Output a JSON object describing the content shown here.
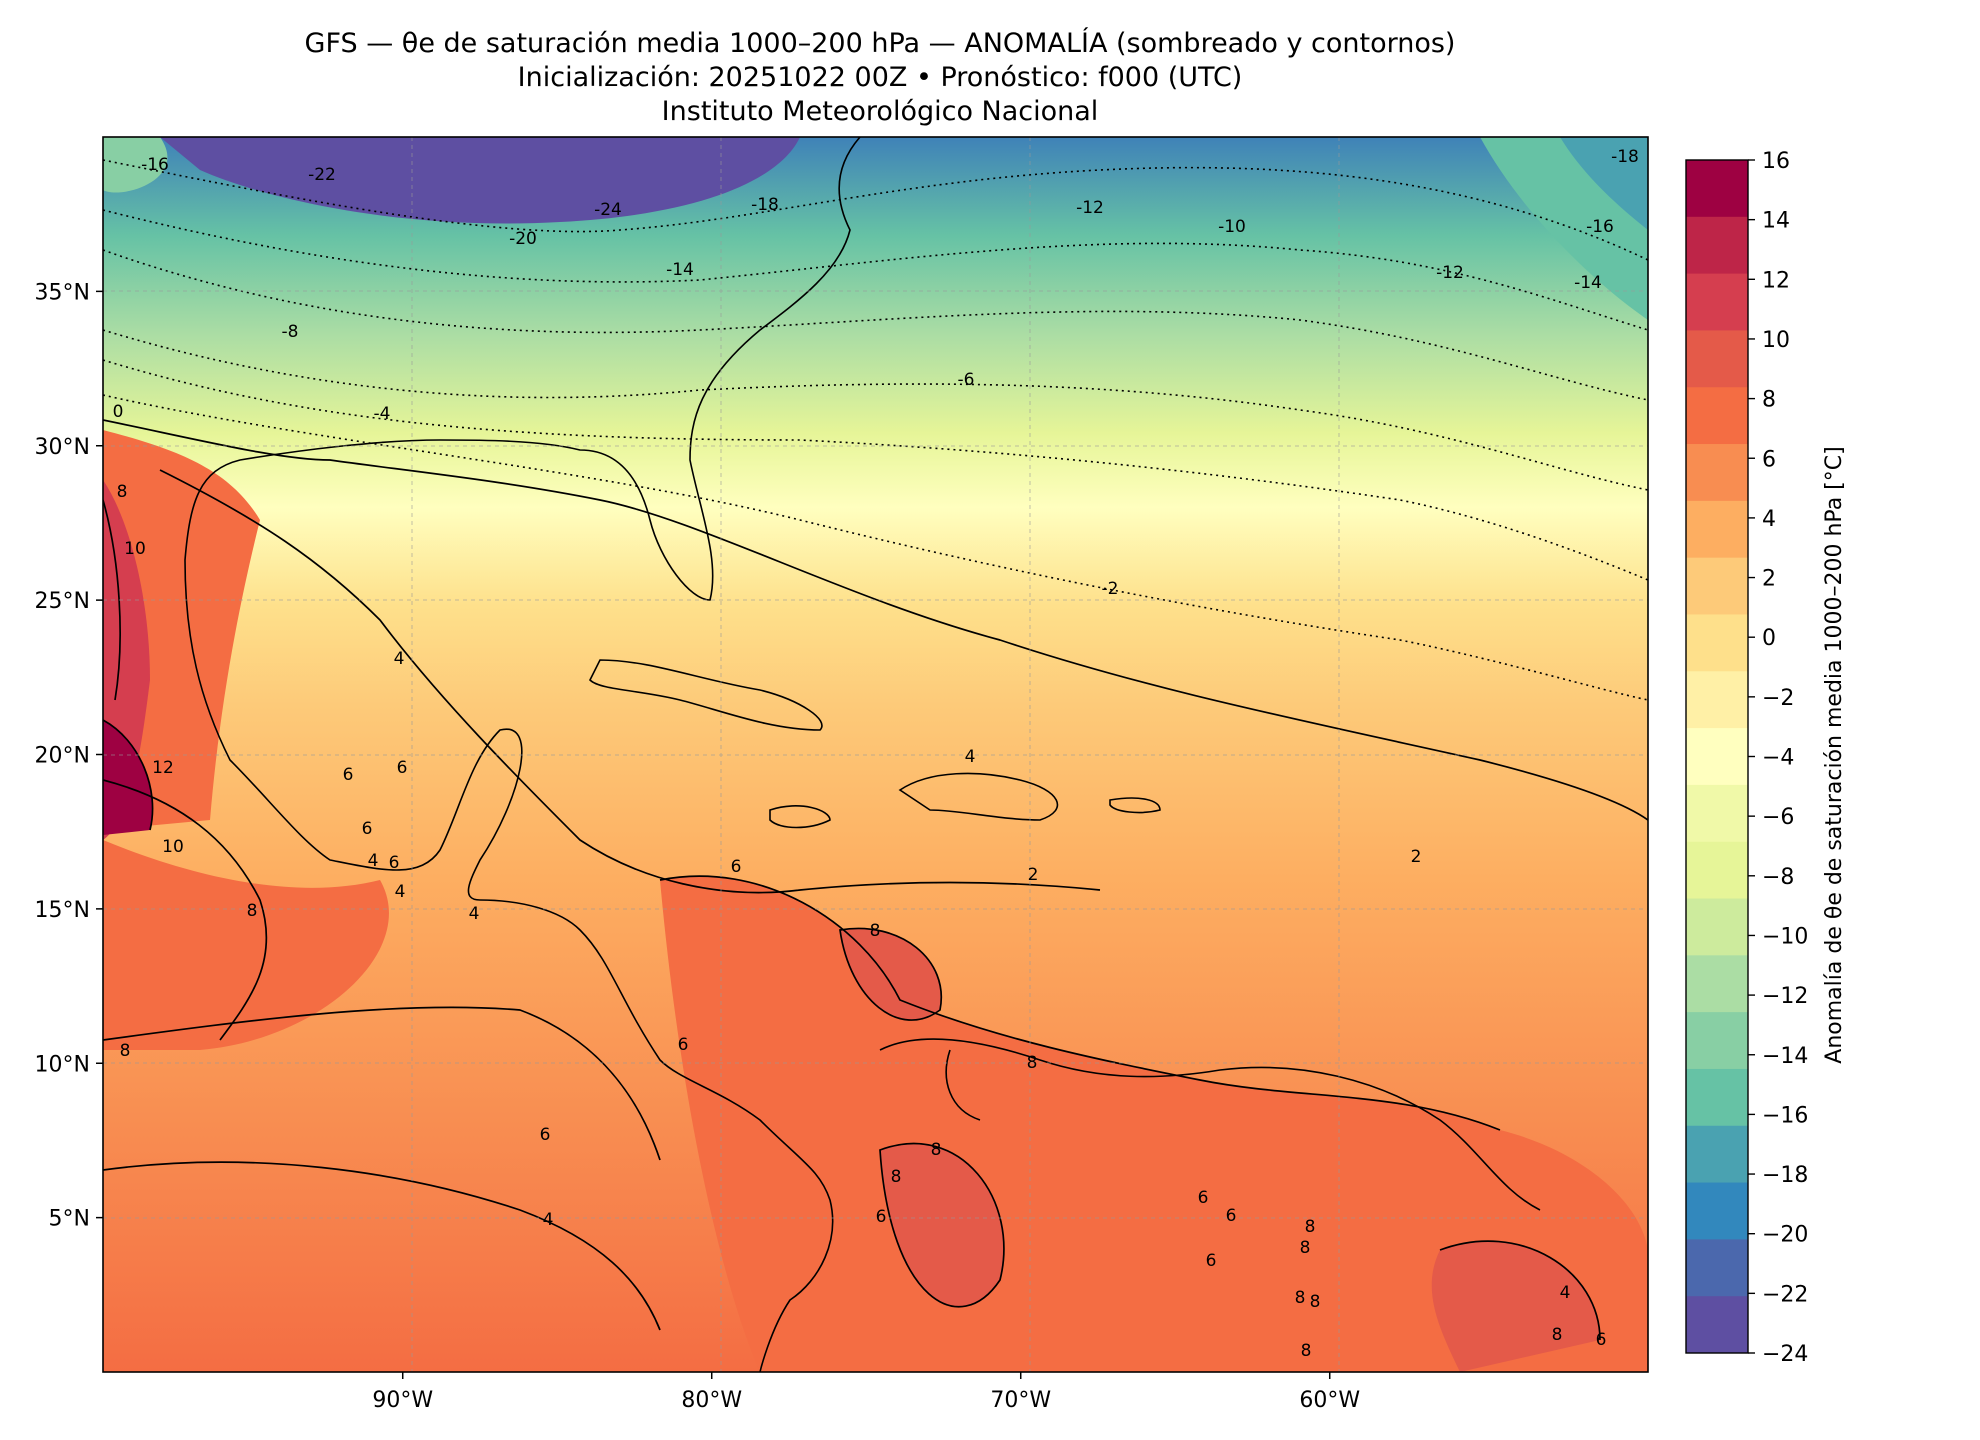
{
  "header": {
    "line1": "GFS — θe de saturación media 1000–200 hPa — ANOMALÍA (sombreado y contornos)",
    "line2": "Inicialización: 20251022 00Z   •   Pronóstico: f000 (UTC)",
    "line3": "Instituto Meteorológico Nacional"
  },
  "map": {
    "lon_ticks": [
      {
        "value": -90,
        "label": "90°W"
      },
      {
        "value": -80,
        "label": "80°W"
      },
      {
        "value": -70,
        "label": "70°W"
      },
      {
        "value": -60,
        "label": "60°W"
      }
    ],
    "lat_ticks": [
      {
        "value": 35,
        "label": "35°N"
      },
      {
        "value": 30,
        "label": "30°N"
      },
      {
        "value": 25,
        "label": "25°N"
      },
      {
        "value": 20,
        "label": "20°N"
      },
      {
        "value": 15,
        "label": "15°N"
      },
      {
        "value": 10,
        "label": "10°N"
      },
      {
        "value": 5,
        "label": "5°N"
      }
    ],
    "extent": {
      "lon_min": -99.7,
      "lon_max": -49.7,
      "lat_min": 0,
      "lat_max": 40
    }
  },
  "colorbar": {
    "label": "Anomalía de θe de saturación media 1000–200 hPa [°C]",
    "tick_labels": [
      "16",
      "14",
      "12",
      "10",
      "8",
      "6",
      "4",
      "2",
      "0",
      "−2",
      "−4",
      "−6",
      "−8",
      "−10",
      "−12",
      "−14",
      "−16",
      "−18",
      "−20",
      "−22",
      "−24"
    ],
    "levels": [
      16,
      14,
      12,
      10,
      8,
      6,
      4,
      2,
      0,
      -2,
      -4,
      -6,
      -8,
      -10,
      -12,
      -14,
      -16,
      -18,
      -20,
      -22,
      -24
    ],
    "colors": [
      "#9e0142",
      "#be2548",
      "#d53e4f",
      "#e45a49",
      "#f46d43",
      "#f88d51",
      "#fdae61",
      "#fdca79",
      "#fee08b",
      "#fff0a6",
      "#ffffbf",
      "#f0f9a8",
      "#e6f598",
      "#cdeb9d",
      "#abdda4",
      "#88cfa4",
      "#66c2a5",
      "#4aa2b1",
      "#3288bd",
      "#4b68ad",
      "#5e4fa2"
    ]
  },
  "contour_labels": [
    "-16",
    "-22",
    "-24",
    "-20",
    "-18",
    "-14",
    "-12",
    "-10",
    "-18",
    "-16",
    "-12",
    "-14",
    "-8",
    "-4",
    "-6",
    "0",
    "-2",
    "8",
    "10",
    "4",
    "6",
    "6",
    "6",
    "6",
    "4",
    "4",
    "4",
    "12",
    "10",
    "8",
    "8",
    "4",
    "6",
    "4",
    "2",
    "2",
    "6",
    "6",
    "8",
    "8",
    "8",
    "8",
    "6",
    "6",
    "6",
    "4",
    "6",
    "8",
    "8",
    "8",
    "8",
    "8",
    "8",
    "6"
  ]
}
